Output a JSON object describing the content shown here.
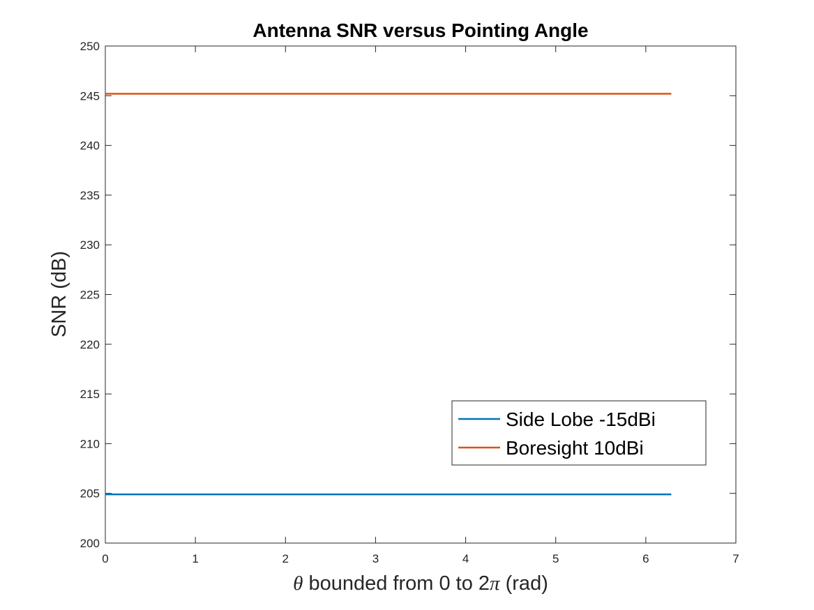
{
  "chart_data": {
    "type": "line",
    "title": "Antenna SNR versus Pointing Angle",
    "xlabel_symbol": "θ",
    "xlabel_text": " bounded from 0 to 2",
    "xlabel_pi": "π",
    "xlabel_unit": " (rad)",
    "ylabel": "SNR (dB)",
    "xlim": [
      0,
      7
    ],
    "ylim": [
      200,
      250
    ],
    "xticks": [
      "0",
      "1",
      "2",
      "3",
      "4",
      "5",
      "6",
      "7"
    ],
    "yticks": [
      "200",
      "205",
      "210",
      "215",
      "220",
      "225",
      "230",
      "235",
      "240",
      "245",
      "250"
    ],
    "grid": false,
    "legend_position": "lower-right",
    "series": [
      {
        "name": "Side Lobe -15dBi",
        "color": "#0072BD",
        "x": [
          0,
          6.2832
        ],
        "y": [
          204.9,
          204.9
        ]
      },
      {
        "name": "Boresight 10dBi",
        "color": "#D95319",
        "x": [
          0,
          6.2832
        ],
        "y": [
          245.2,
          245.2
        ]
      }
    ]
  }
}
